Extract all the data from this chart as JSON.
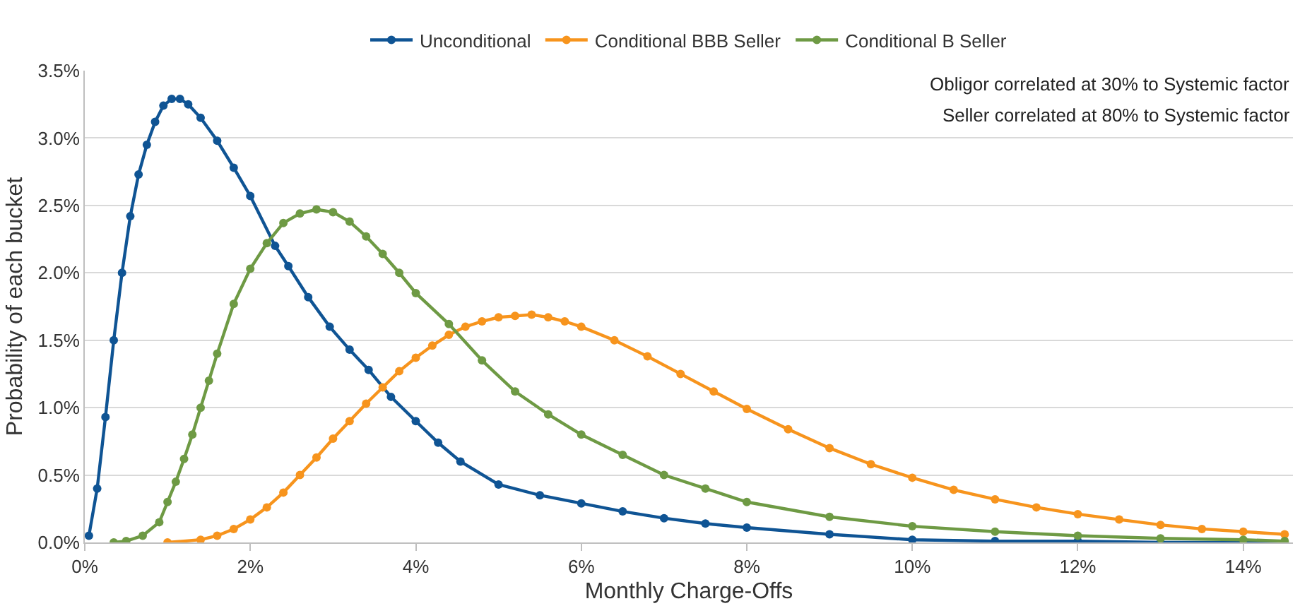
{
  "chart_data": {
    "type": "line",
    "xlabel": "Monthly Charge-Offs",
    "ylabel": "Probability of each bucket",
    "annotations": [
      "Obligor correlated at 30% to Systemic factor",
      "Seller correlated at 80% to Systemic factor"
    ],
    "xlim": [
      0,
      14.6
    ],
    "xticks": [
      {
        "value": 0,
        "label": "0%"
      },
      {
        "value": 2,
        "label": "2%"
      },
      {
        "value": 4,
        "label": "4%"
      },
      {
        "value": 6,
        "label": "6%"
      },
      {
        "value": 8,
        "label": "8%"
      },
      {
        "value": 10,
        "label": "10%"
      },
      {
        "value": 12,
        "label": "12%"
      },
      {
        "value": 14,
        "label": "14%"
      }
    ],
    "ylim": [
      0,
      3.5
    ],
    "yticks": [
      {
        "value": 0,
        "label": "0.0%"
      },
      {
        "value": 0.5,
        "label": "0.5%"
      },
      {
        "value": 1,
        "label": "1.0%"
      },
      {
        "value": 1.5,
        "label": "1.5%"
      },
      {
        "value": 2,
        "label": "2.0%"
      },
      {
        "value": 2.5,
        "label": "2.5%"
      },
      {
        "value": 3,
        "label": "3.0%"
      },
      {
        "value": 3.5,
        "label": "3.5%"
      }
    ],
    "grid": "y",
    "legend": "top",
    "marker": "circle",
    "line_style": "solid",
    "series": [
      {
        "name": "Unconditional",
        "color": "#0f5494",
        "x": [
          0.05,
          0.15,
          0.25,
          0.35,
          0.45,
          0.55,
          0.65,
          0.75,
          0.85,
          0.95,
          1.05,
          1.15,
          1.25,
          1.4,
          1.6,
          1.8,
          2.0,
          2.3,
          2.46,
          2.7,
          2.96,
          3.2,
          3.43,
          3.7,
          4.0,
          4.27,
          4.54,
          5.0,
          5.5,
          6.0,
          6.5,
          7.0,
          7.5,
          8.0,
          9.0,
          10,
          11,
          12,
          13,
          14,
          14.5
        ],
        "values": [
          0.05,
          0.4,
          0.93,
          1.5,
          2.0,
          2.42,
          2.73,
          2.95,
          3.12,
          3.24,
          3.29,
          3.29,
          3.25,
          3.15,
          2.98,
          2.78,
          2.57,
          2.2,
          2.05,
          1.82,
          1.6,
          1.43,
          1.28,
          1.08,
          0.9,
          0.74,
          0.6,
          0.43,
          0.35,
          0.29,
          0.23,
          0.18,
          0.14,
          0.11,
          0.06,
          0.02,
          0.01,
          0.01,
          0.0,
          0.0,
          0.0
        ]
      },
      {
        "name": "Conditional BBB Seller",
        "color": "#f7941d",
        "x": [
          1.0,
          1.4,
          1.6,
          1.8,
          2.0,
          2.2,
          2.4,
          2.6,
          2.8,
          3.0,
          3.2,
          3.4,
          3.6,
          3.8,
          4.0,
          4.2,
          4.4,
          4.6,
          4.8,
          5.0,
          5.2,
          5.4,
          5.6,
          5.8,
          6.0,
          6.4,
          6.8,
          7.2,
          7.6,
          8.0,
          8.5,
          9.0,
          9.5,
          10,
          10.5,
          11,
          11.5,
          12,
          12.5,
          13,
          13.5,
          14,
          14.5
        ],
        "values": [
          0.0,
          0.02,
          0.05,
          0.1,
          0.17,
          0.26,
          0.37,
          0.5,
          0.63,
          0.77,
          0.9,
          1.03,
          1.15,
          1.27,
          1.37,
          1.46,
          1.54,
          1.6,
          1.64,
          1.67,
          1.68,
          1.69,
          1.67,
          1.64,
          1.6,
          1.5,
          1.38,
          1.25,
          1.12,
          0.99,
          0.84,
          0.7,
          0.58,
          0.48,
          0.39,
          0.32,
          0.26,
          0.21,
          0.17,
          0.13,
          0.1,
          0.08,
          0.06
        ]
      },
      {
        "name": "Conditional B Seller",
        "color": "#6e9a44",
        "x": [
          0.35,
          0.5,
          0.7,
          0.9,
          1.0,
          1.1,
          1.2,
          1.3,
          1.4,
          1.5,
          1.6,
          1.8,
          2.0,
          2.2,
          2.4,
          2.6,
          2.8,
          3.0,
          3.2,
          3.4,
          3.6,
          3.8,
          4.0,
          4.4,
          4.8,
          5.2,
          5.6,
          6.0,
          6.5,
          7.0,
          7.5,
          8.0,
          9.0,
          10,
          11,
          12,
          13,
          14,
          14.5
        ],
        "values": [
          0.0,
          0.01,
          0.05,
          0.15,
          0.3,
          0.45,
          0.62,
          0.8,
          1.0,
          1.2,
          1.4,
          1.77,
          2.03,
          2.22,
          2.37,
          2.44,
          2.47,
          2.45,
          2.38,
          2.27,
          2.14,
          2.0,
          1.85,
          1.62,
          1.35,
          1.12,
          0.95,
          0.8,
          0.65,
          0.5,
          0.4,
          0.3,
          0.19,
          0.12,
          0.08,
          0.05,
          0.03,
          0.02,
          0.01
        ]
      }
    ]
  }
}
